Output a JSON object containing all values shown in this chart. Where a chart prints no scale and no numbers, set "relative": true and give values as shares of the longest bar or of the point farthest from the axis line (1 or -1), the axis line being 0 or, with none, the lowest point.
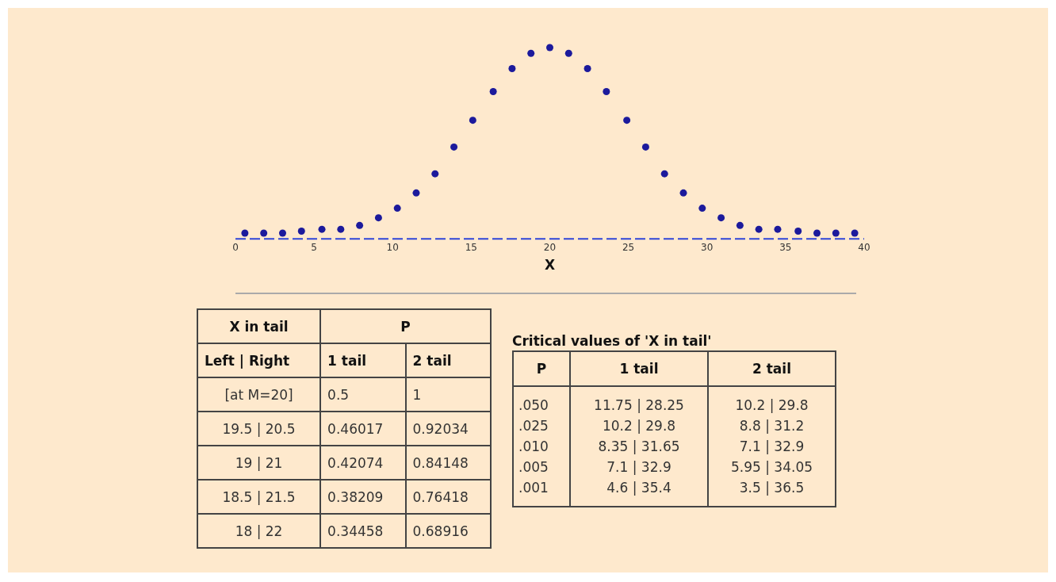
{
  "chart_data": [
    {
      "type": "scatter",
      "xlabel": "X",
      "relative": true,
      "marker": "circle",
      "color": "#1c1a9c",
      "x": [
        0.6,
        1.8,
        3.0,
        4.2,
        5.5,
        6.7,
        7.9,
        9.1,
        10.3,
        11.5,
        12.7,
        13.9,
        15.1,
        16.4,
        17.6,
        18.8,
        20,
        21.2,
        22.4,
        23.6,
        24.9,
        26.1,
        27.3,
        28.5,
        29.7,
        30.9,
        32.1,
        33.3,
        34.5,
        35.8,
        37.0,
        38.2,
        39.4
      ],
      "values": [
        0.03,
        0.03,
        0.03,
        0.04,
        0.05,
        0.05,
        0.07,
        0.11,
        0.16,
        0.24,
        0.34,
        0.48,
        0.62,
        0.77,
        0.89,
        0.97,
        1,
        0.97,
        0.89,
        0.77,
        0.62,
        0.48,
        0.34,
        0.24,
        0.16,
        0.11,
        0.07,
        0.05,
        0.05,
        0.04,
        0.03,
        0.03,
        0.03
      ],
      "xlim": [
        0,
        40
      ],
      "xticks": [
        0,
        5,
        10,
        15,
        20,
        25,
        30,
        35,
        40
      ]
    },
    {
      "type": "other",
      "annotations": [
        "X in tail",
        "P",
        "Left | Right",
        "1 tail",
        "2 tail",
        "[at M=20]",
        "0.5",
        "1",
        "19.5 | 20.5",
        "0.46017",
        "0.92034",
        "19 | 21",
        "0.42074",
        "0.84148",
        "18.5 | 21.5",
        "0.38209",
        "0.76418",
        "18 | 22",
        "0.34458",
        "0.68916"
      ]
    },
    {
      "type": "other",
      "title": "Critical values of 'X in tail'",
      "annotations": [
        "P",
        "1 tail",
        "2 tail",
        ".050",
        "11.75 | 28.25",
        "10.2 | 29.8",
        ".025",
        "10.2 | 29.8",
        "8.8 | 31.2",
        ".010",
        "8.35 | 31.65",
        "7.1 | 32.9",
        ".005",
        "7.1 | 32.9",
        "5.95 | 34.05",
        ".001",
        "4.6 | 35.4",
        "3.5 | 36.5"
      ]
    }
  ]
}
